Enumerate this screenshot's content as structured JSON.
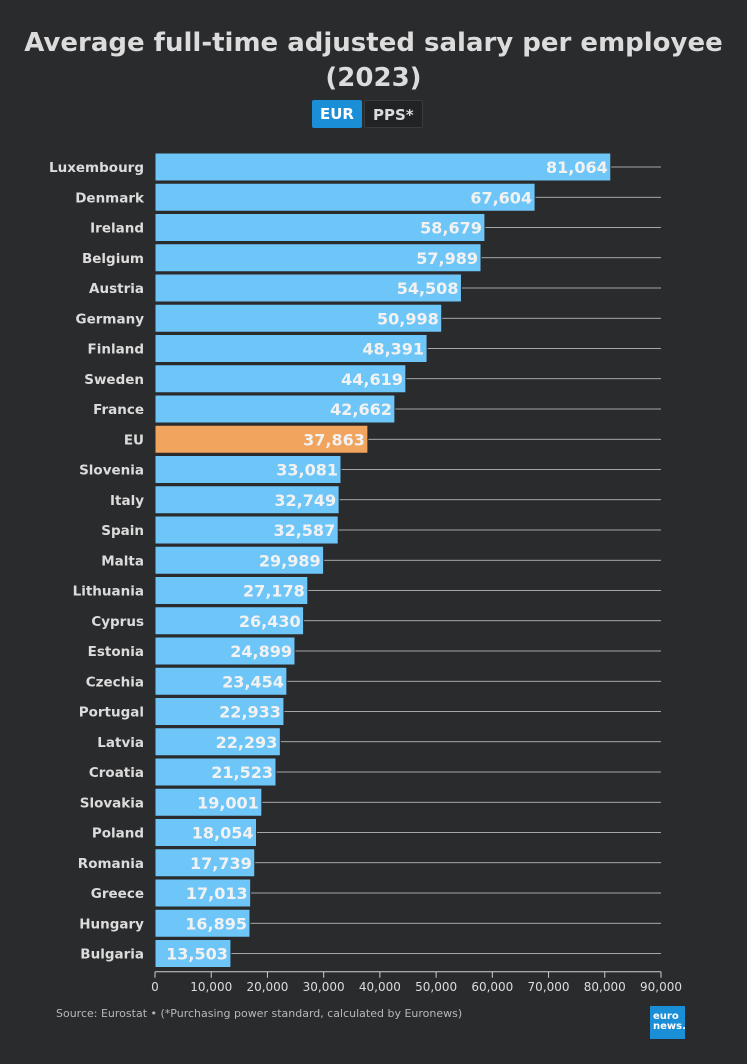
{
  "title": "Average full-time adjusted salary per employee (2023)",
  "toggle": {
    "active": "EUR",
    "inactive": "PPS*"
  },
  "colors": {
    "background": "#2a2b2d",
    "bar": "#6ec6f8",
    "highlight": "#f0a45e",
    "label": "#f2f2f2",
    "text": "#dcdcdc",
    "grid": "#cfcfcf",
    "button_active": "#1a8fd8"
  },
  "chart_data": {
    "type": "bar",
    "orientation": "horizontal",
    "title": "Average full-time adjusted salary per employee (2023)",
    "categories": [
      "Luxembourg",
      "Denmark",
      "Ireland",
      "Belgium",
      "Austria",
      "Germany",
      "Finland",
      "Sweden",
      "France",
      "EU",
      "Slovenia",
      "Italy",
      "Spain",
      "Malta",
      "Lithuania",
      "Cyprus",
      "Estonia",
      "Czechia",
      "Portugal",
      "Latvia",
      "Croatia",
      "Slovakia",
      "Poland",
      "Romania",
      "Greece",
      "Hungary",
      "Bulgaria"
    ],
    "values": [
      81064,
      67604,
      58679,
      57989,
      54508,
      50998,
      48391,
      44619,
      42662,
      37863,
      33081,
      32749,
      32587,
      29989,
      27178,
      26430,
      24899,
      23454,
      22933,
      22293,
      21523,
      19001,
      18054,
      17739,
      17013,
      16895,
      13503
    ],
    "value_labels": [
      "81,064",
      "67,604",
      "58,679",
      "57,989",
      "54,508",
      "50,998",
      "48,391",
      "44,619",
      "42,662",
      "37,863",
      "33,081",
      "32,749",
      "32,587",
      "29,989",
      "27,178",
      "26,430",
      "24,899",
      "23,454",
      "22,933",
      "22,293",
      "21,523",
      "19,001",
      "18,054",
      "17,739",
      "17,013",
      "16,895",
      "13,503"
    ],
    "highlight": "EU",
    "xlim": [
      0,
      90000
    ],
    "xticks": [
      0,
      10000,
      20000,
      30000,
      40000,
      50000,
      60000,
      70000,
      80000,
      90000
    ],
    "xtick_labels": [
      "0",
      "10,000",
      "20,000",
      "30,000",
      "40,000",
      "50,000",
      "60,000",
      "70,000",
      "80,000",
      "90,000"
    ],
    "xlabel": "",
    "ylabel": ""
  },
  "source": "Source: Eurostat • (*Purchasing power standard, calculated by Euronews)",
  "logo": {
    "line1": "euro",
    "line2": "news."
  }
}
